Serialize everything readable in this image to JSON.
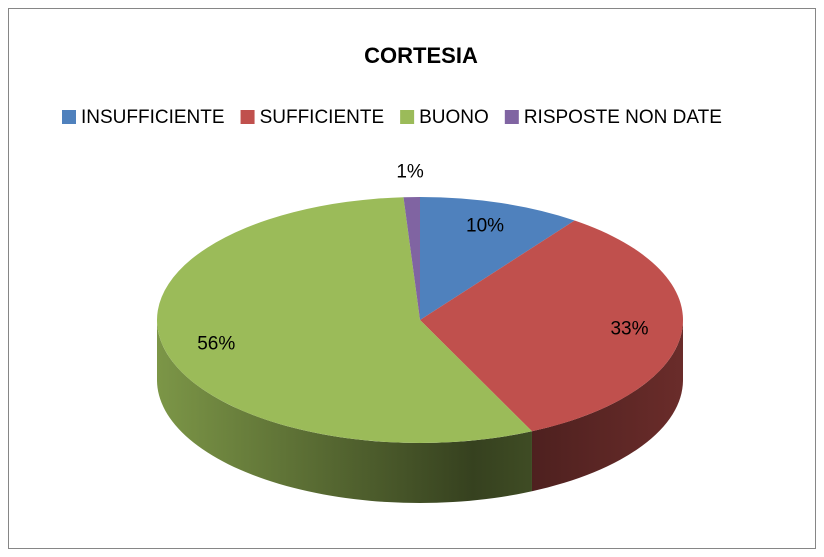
{
  "chart_data": {
    "type": "pie",
    "title": "CORTESIA",
    "categories": [
      "INSUFFICIENTE",
      "SUFFICIENTE",
      "BUONO",
      "RISPOSTE NON DATE"
    ],
    "values": [
      10,
      33,
      56,
      1
    ],
    "value_labels": [
      "10%",
      "33%",
      "56%",
      "1%"
    ],
    "colors": [
      "#4f81bd",
      "#c0504d",
      "#9bbb59",
      "#8064a2"
    ],
    "legend": "top",
    "three_d": true
  }
}
